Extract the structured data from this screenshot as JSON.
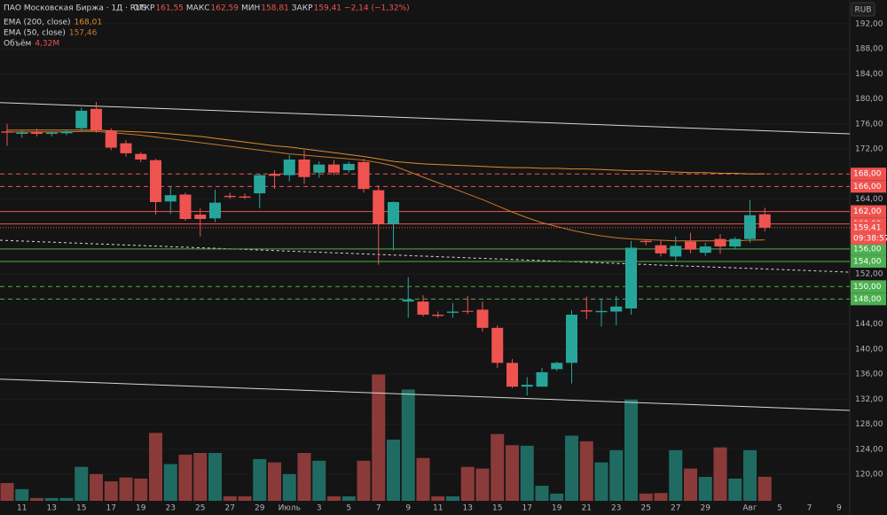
{
  "chart_data": {
    "type": "candlestick",
    "title": "ПАО Московская Биржа · 1Д · RUS",
    "ohlc_legend": [
      {
        "label": "ОТКР",
        "value": "161,55"
      },
      {
        "label": "МАКС",
        "value": "162,59"
      },
      {
        "label": "МИН",
        "value": "158,81"
      },
      {
        "label": "ЗАКР",
        "value": "159,41"
      }
    ],
    "change": "−2,14 (−1,32%)",
    "currency": "RUB",
    "up_color": "#26a69a",
    "down_color": "#ef5350",
    "volume_up_color": "#1f6b62",
    "volume_down_color": "#8b3a3a",
    "categories": [
      null,
      "11",
      null,
      "13",
      null,
      "15",
      null,
      "17",
      null,
      "19",
      null,
      "23",
      null,
      "25",
      null,
      "27",
      null,
      "29",
      null,
      "Июль",
      null,
      "3",
      null,
      "5",
      null,
      "7",
      null,
      "9",
      null,
      "11",
      null,
      "13",
      null,
      "15",
      null,
      "17",
      null,
      "19",
      null,
      "21",
      null,
      "23",
      null,
      "25",
      null,
      "27",
      null,
      "29",
      null,
      null,
      "Авг",
      null,
      "5",
      null,
      "7",
      null,
      "9"
    ],
    "open": [
      174.8,
      174.4,
      174.7,
      174.4,
      174.5,
      175.3,
      178.4,
      174.9,
      172.9,
      171.2,
      170.2,
      163.6,
      164.7,
      161.5,
      160.9,
      164.5,
      164.4,
      164.9,
      168.0,
      167.8,
      170.3,
      168.2,
      169.5,
      168.6,
      169.9,
      165.4,
      160.0,
      147.6,
      147.6,
      145.5,
      145.8,
      146.1,
      146.3,
      143.4,
      137.8,
      134.0,
      134.0,
      136.8,
      137.8,
      146.2,
      145.9,
      146.0,
      146.5,
      157.3,
      156.6,
      154.8,
      157.2,
      155.4,
      157.6,
      156.4,
      157.6,
      161.55,
      null,
      null,
      null,
      null,
      null
    ],
    "high": [
      176.0,
      175.0,
      175.2,
      174.8,
      175.0,
      178.6,
      179.5,
      175.3,
      173.4,
      171.5,
      170.4,
      166.0,
      165.0,
      162.5,
      165.5,
      165.0,
      164.9,
      168.0,
      168.6,
      171.0,
      171.8,
      170.0,
      170.2,
      170.0,
      170.4,
      166.2,
      163.6,
      151.5,
      148.6,
      146.0,
      147.4,
      148.5,
      147.6,
      143.8,
      138.4,
      135.5,
      137.0,
      138.0,
      146.2,
      148.4,
      148.0,
      148.5,
      157.3,
      157.6,
      157.4,
      158.0,
      158.6,
      157.0,
      158.4,
      157.9,
      163.8,
      162.59,
      null,
      null,
      null,
      null,
      null
    ],
    "low": [
      172.5,
      173.8,
      174.0,
      174.0,
      174.2,
      175.0,
      174.6,
      171.8,
      170.8,
      169.9,
      161.5,
      161.6,
      160.5,
      158.0,
      160.3,
      164.0,
      164.0,
      162.5,
      165.6,
      166.8,
      166.4,
      167.4,
      167.8,
      168.2,
      165.0,
      153.5,
      155.8,
      145.0,
      145.2,
      145.0,
      145.0,
      145.6,
      142.8,
      137.0,
      133.8,
      132.6,
      134.0,
      136.5,
      134.5,
      144.8,
      143.6,
      143.8,
      145.5,
      156.6,
      154.8,
      154.0,
      155.3,
      154.9,
      155.2,
      156.0,
      157.0,
      158.81,
      null,
      null,
      null,
      null,
      null
    ],
    "close": [
      174.6,
      174.6,
      174.4,
      174.6,
      174.8,
      178.1,
      174.9,
      172.2,
      171.3,
      170.3,
      163.5,
      164.6,
      160.8,
      160.8,
      163.4,
      164.3,
      164.2,
      167.8,
      167.7,
      170.3,
      167.5,
      169.5,
      168.2,
      169.6,
      165.6,
      160.0,
      163.5,
      147.9,
      145.5,
      145.3,
      146.0,
      146.0,
      143.4,
      137.8,
      134.0,
      134.3,
      136.3,
      137.8,
      145.5,
      146.0,
      146.1,
      146.8,
      156.2,
      157.1,
      155.3,
      156.5,
      155.9,
      156.4,
      156.4,
      157.6,
      161.4,
      159.41,
      null,
      null,
      null,
      null,
      null
    ],
    "volume": [
      3.2,
      2.1,
      0.5,
      0.5,
      0.5,
      6.1,
      4.8,
      3.5,
      4.2,
      4.0,
      12.2,
      6.6,
      8.3,
      8.6,
      8.6,
      0.8,
      0.8,
      7.5,
      6.9,
      4.8,
      8.6,
      7.2,
      0.8,
      0.8,
      7.2,
      22.7,
      11.0,
      20.0,
      7.7,
      0.8,
      0.8,
      6.1,
      5.8,
      12.0,
      10.0,
      9.9,
      2.7,
      1.3,
      11.7,
      10.7,
      6.9,
      9.1,
      18.2,
      1.3,
      1.4,
      9.1,
      5.8,
      4.3,
      9.6,
      4.0,
      9.1,
      4.32,
      null,
      null,
      null,
      null,
      null
    ],
    "volume_name": "Объём",
    "volume_value": "4,32M",
    "vlim": [
      0,
      90
    ],
    "indicators": [
      {
        "name": "EMA (200, close)",
        "value": "168,01",
        "color": "#e08a2c",
        "values": [
          175.0,
          175.0,
          175.0,
          175.0,
          175.0,
          175.0,
          175.0,
          174.9,
          174.8,
          174.7,
          174.6,
          174.4,
          174.2,
          174.0,
          173.7,
          173.4,
          173.1,
          172.8,
          172.5,
          172.3,
          172.0,
          171.7,
          171.4,
          171.1,
          170.8,
          170.4,
          170.0,
          169.8,
          169.6,
          169.5,
          169.4,
          169.3,
          169.2,
          169.1,
          169.0,
          169.0,
          168.9,
          168.9,
          168.8,
          168.8,
          168.7,
          168.6,
          168.5,
          168.5,
          168.4,
          168.3,
          168.2,
          168.2,
          168.1,
          168.1,
          168.0,
          168.01,
          null,
          null,
          null,
          null,
          null
        ]
      },
      {
        "name": "EMA (50, close)",
        "value": "157,46",
        "color": "#c9782a",
        "values": [
          174.7,
          174.7,
          174.7,
          174.7,
          174.7,
          174.8,
          174.8,
          174.6,
          174.4,
          174.2,
          173.9,
          173.6,
          173.3,
          173.0,
          172.7,
          172.4,
          172.1,
          171.8,
          171.5,
          171.2,
          171.0,
          170.8,
          170.6,
          170.4,
          170.2,
          169.8,
          169.3,
          168.4,
          167.5,
          166.6,
          165.7,
          164.8,
          163.9,
          162.9,
          161.9,
          161.0,
          160.2,
          159.6,
          159.0,
          158.5,
          158.1,
          157.8,
          157.6,
          157.5,
          157.4,
          157.3,
          157.3,
          157.3,
          157.3,
          157.3,
          157.4,
          157.46,
          null,
          null,
          null,
          null,
          null
        ]
      }
    ],
    "levels": [
      {
        "value": 168,
        "label": "168,00",
        "color": "#ef5350",
        "dash": true
      },
      {
        "value": 166,
        "label": "166,00",
        "color": "#ef5350",
        "dash": true
      },
      {
        "value": 162,
        "label": "162,00",
        "color": "#ef5350",
        "dash": false
      },
      {
        "value": 160,
        "label": "160,00",
        "color": "#ef5350",
        "dash": false
      },
      {
        "value": 156,
        "label": "156,00",
        "color": "#4caf50",
        "dash": false
      },
      {
        "value": 154,
        "label": "154,00",
        "color": "#4caf50",
        "dash": false
      },
      {
        "value": 150,
        "label": "150,00",
        "color": "#4caf50",
        "dash": true
      },
      {
        "value": 148,
        "label": "148,00",
        "color": "#4caf50",
        "dash": true
      }
    ],
    "trendlines": [
      {
        "start": 179.4,
        "end": 174.4,
        "dash": false
      },
      {
        "start": 157.4,
        "end": 152.3,
        "dash": true
      },
      {
        "start": 135.2,
        "end": 130.2,
        "dash": false
      }
    ],
    "last_price": {
      "value": 159.41,
      "label": "159,41",
      "time": "09:38:57"
    },
    "ylim": [
      115.75,
      195.8
    ],
    "yticks": [
      {
        "value": 192,
        "label": "192,00"
      },
      {
        "value": 188,
        "label": "188,00"
      },
      {
        "value": 184,
        "label": "184,00"
      },
      {
        "value": 180,
        "label": "180,00"
      },
      {
        "value": 176,
        "label": "176,00"
      },
      {
        "value": 172,
        "label": "172,00"
      },
      {
        "value": 168,
        "label": "168,00"
      },
      {
        "value": 164,
        "label": "164,00"
      },
      {
        "value": 160,
        "label": "160,00"
      },
      {
        "value": 156,
        "label": "156,00"
      },
      {
        "value": 152,
        "label": "152,00"
      },
      {
        "value": 148,
        "label": "148,00"
      },
      {
        "value": 144,
        "label": "144,00"
      },
      {
        "value": 140,
        "label": "140,00"
      },
      {
        "value": 136,
        "label": "136,00"
      },
      {
        "value": 132,
        "label": "132,00"
      },
      {
        "value": 128,
        "label": "128,00"
      },
      {
        "value": 124,
        "label": "124,00"
      },
      {
        "value": 120,
        "label": "120,00"
      }
    ],
    "grid": true
  }
}
